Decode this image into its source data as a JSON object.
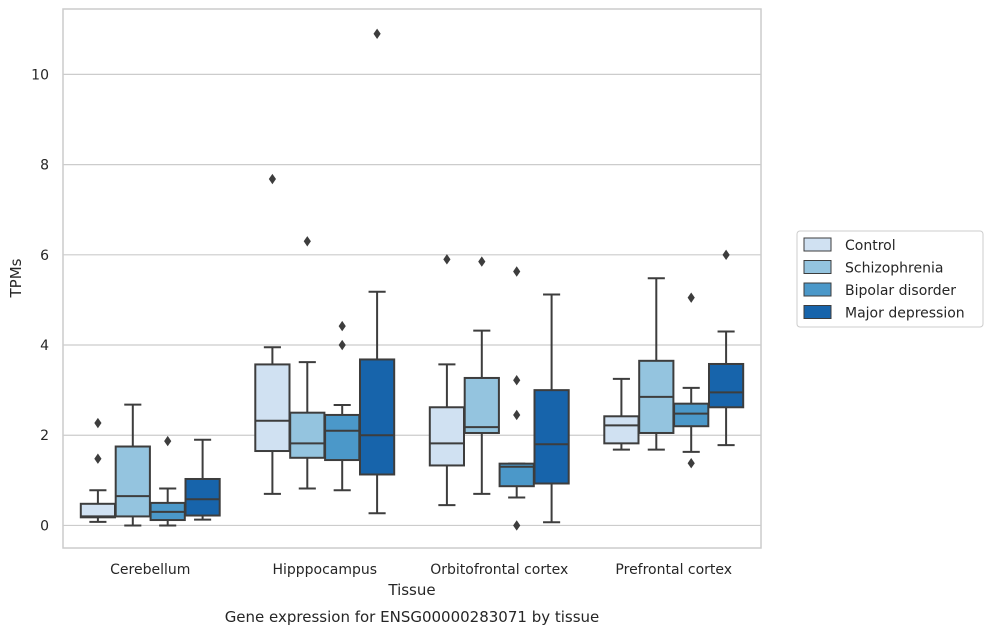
{
  "caption": "Gene expression for ENSG00000283071 by tissue",
  "chart_data": {
    "type": "box",
    "xlabel": "Tissue",
    "ylabel": "TPMs",
    "ylim": [
      -0.5,
      11.45
    ],
    "yticks": [
      0,
      2,
      4,
      6,
      8,
      10
    ],
    "grid": true,
    "legend_position": "right",
    "categories": [
      "Cerebellum",
      "Hipppocampus",
      "Orbitofrontal cortex",
      "Prefrontal cortex"
    ],
    "series": [
      {
        "name": "Control",
        "color": "#d0e1f2",
        "boxes": [
          {
            "whislo": 0.08,
            "q1": 0.18,
            "med": 0.2,
            "q3": 0.48,
            "whishi": 0.78,
            "fliers": [
              1.48,
              2.27
            ]
          },
          {
            "whislo": 0.7,
            "q1": 1.65,
            "med": 2.32,
            "q3": 3.57,
            "whishi": 3.95,
            "fliers": [
              7.68
            ]
          },
          {
            "whislo": 0.45,
            "q1": 1.33,
            "med": 1.82,
            "q3": 2.62,
            "whishi": 3.57,
            "fliers": [
              5.9
            ]
          },
          {
            "whislo": 1.68,
            "q1": 1.82,
            "med": 2.22,
            "q3": 2.42,
            "whishi": 3.25,
            "fliers": []
          }
        ]
      },
      {
        "name": "Schizophrenia",
        "color": "#94c4df",
        "boxes": [
          {
            "whislo": 0.0,
            "q1": 0.2,
            "med": 0.65,
            "q3": 1.75,
            "whishi": 2.68,
            "fliers": []
          },
          {
            "whislo": 0.82,
            "q1": 1.5,
            "med": 1.82,
            "q3": 2.5,
            "whishi": 3.62,
            "fliers": [
              6.3
            ]
          },
          {
            "whislo": 0.7,
            "q1": 2.05,
            "med": 2.18,
            "q3": 3.27,
            "whishi": 4.32,
            "fliers": [
              5.85
            ]
          },
          {
            "whislo": 1.68,
            "q1": 2.05,
            "med": 2.85,
            "q3": 3.65,
            "whishi": 5.48,
            "fliers": []
          }
        ]
      },
      {
        "name": "Bipolar disorder",
        "color": "#4b98c9",
        "boxes": [
          {
            "whislo": 0.0,
            "q1": 0.12,
            "med": 0.3,
            "q3": 0.5,
            "whishi": 0.82,
            "fliers": [
              1.87
            ]
          },
          {
            "whislo": 0.78,
            "q1": 1.45,
            "med": 2.1,
            "q3": 2.45,
            "whishi": 2.67,
            "fliers": [
              4.0,
              4.42
            ]
          },
          {
            "whislo": 0.62,
            "q1": 0.87,
            "med": 1.3,
            "q3": 1.37,
            "whishi": 1.37,
            "fliers": [
              0.0,
              2.45,
              3.22,
              5.63
            ]
          },
          {
            "whislo": 1.63,
            "q1": 2.2,
            "med": 2.48,
            "q3": 2.7,
            "whishi": 3.05,
            "fliers": [
              1.38,
              5.05
            ]
          }
        ]
      },
      {
        "name": "Major depression",
        "color": "#1764ab",
        "boxes": [
          {
            "whislo": 0.13,
            "q1": 0.22,
            "med": 0.58,
            "q3": 1.03,
            "whishi": 1.9,
            "fliers": []
          },
          {
            "whislo": 0.27,
            "q1": 1.13,
            "med": 2.0,
            "q3": 3.68,
            "whishi": 5.18,
            "fliers": [
              10.9
            ]
          },
          {
            "whislo": 0.07,
            "q1": 0.93,
            "med": 1.8,
            "q3": 3.0,
            "whishi": 5.12,
            "fliers": []
          },
          {
            "whislo": 1.78,
            "q1": 2.62,
            "med": 2.95,
            "q3": 3.58,
            "whishi": 4.3,
            "fliers": [
              6.0
            ]
          }
        ]
      }
    ]
  }
}
